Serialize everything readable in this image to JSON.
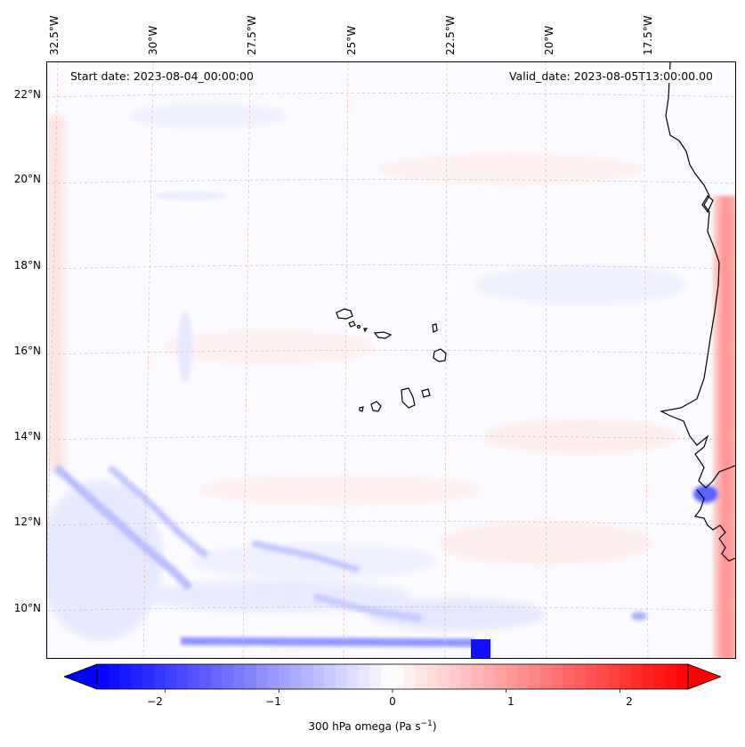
{
  "map": {
    "title_start": "Start date: 2023-08-04_00:00:00",
    "title_valid": "Valid_date: 2023-08-05T13:00:00.00",
    "variable": "300 hPa omega",
    "units": "Pa s",
    "units_exponent": "−1",
    "lon_labels": [
      "32.5°W",
      "30°W",
      "27.5°W",
      "25°W",
      "22.5°W",
      "20°W",
      "17.5°W"
    ],
    "lat_labels": [
      "22°N",
      "20°N",
      "18°N",
      "16°N",
      "14°N",
      "12°N",
      "10°N"
    ],
    "colorbar": {
      "vmin": -2.6,
      "vmax": 2.6,
      "ticks": [
        -2,
        -1,
        0,
        1,
        2
      ],
      "tick_labels": [
        "−2",
        "−1",
        "0",
        "1",
        "2"
      ],
      "cmap": "bwr",
      "low_color": "#0000ff",
      "mid_color": "#ffffff",
      "high_color": "#ff0000"
    },
    "coast_color": "#000000",
    "grid_color": "#d8a898"
  }
}
